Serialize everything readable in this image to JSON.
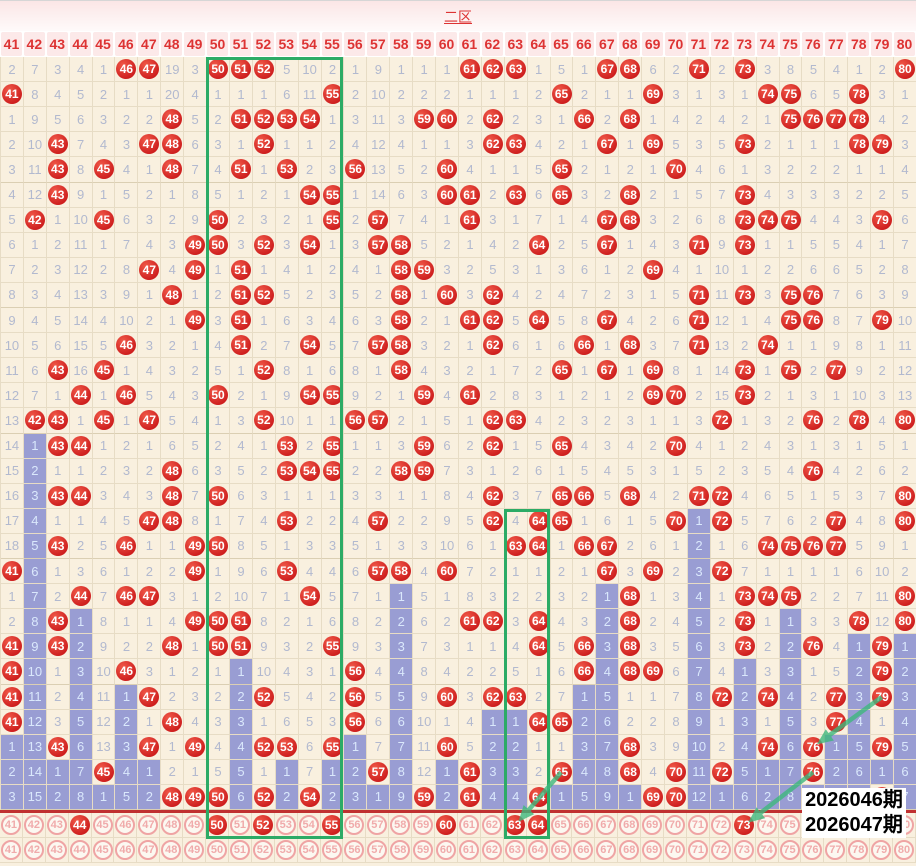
{
  "title": "二区",
  "labels": {
    "period_current": "2026046期",
    "period_next": "2026047期"
  },
  "chart_data": {
    "type": "table",
    "description": "Lottery zone-2 (numbers 41-80) trend chart: 30 past draws; * = drawn number shown as red ball, # = current-omission miss count on purple highlight, plain = miss count",
    "columns": "41,42,43,44,45,46,47,48,49,50,51,52,53,54,55,56,57,58,59,60,61,62,63,64,65,66,67,68,69,70,71,72,73,74,75,76,77,78,79,80",
    "rows": [
      "2,7,3,4,1,*46,*47,19,3,*50,*51,*52,5,10,2,1,9,1,1,1,*61,*62,*63,1,5,1,*67,*68,6,2,*71,2,*73,3,8,5,4,1,2,*80",
      "*41,8,4,5,2,1,1,20,4,1,1,1,6,11,*55,2,10,2,2,2,1,1,1,2,*65,2,1,1,*69,3,1,3,1,*74,*75,6,5,*78,3,1",
      "1,9,5,6,3,2,2,*48,5,2,*51,*52,*53,*54,1,3,11,3,*59,*60,2,*62,2,3,1,*66,2,*68,1,4,2,4,2,1,*75,*76,*77,*78,4,2",
      "2,10,*43,7,4,3,*47,*48,6,3,1,*52,1,1,2,4,12,4,1,1,3,*62,*63,4,2,1,*67,1,*69,5,3,5,*73,2,1,1,1,*78,*79,3",
      "3,11,*43,8,*45,4,1,*48,7,4,*51,1,*53,2,3,*56,13,5,2,*60,4,1,1,5,*65,2,1,2,1,*70,4,6,1,3,2,2,2,1,1,4",
      "4,12,*43,9,1,5,2,1,8,5,1,2,1,*54,*55,1,14,6,3,*60,*61,2,*63,6,*65,3,2,*68,2,1,5,7,*73,4,3,3,3,2,2,5",
      "5,*42,1,10,*45,6,3,2,9,*50,2,3,2,1,*55,2,*57,7,4,1,*61,3,1,7,1,4,*67,*68,3,2,6,8,*73,*74,*75,4,4,3,*79,6",
      "6,1,2,11,1,7,4,3,*49,*50,3,*52,3,*54,1,3,*57,*58,5,2,1,4,2,*64,2,5,*67,1,4,3,*71,9,*73,1,1,5,5,4,1,7",
      "7,2,3,12,2,8,*47,4,*49,1,*51,1,4,1,2,4,1,*58,*59,3,2,5,3,1,3,6,1,2,*69,4,1,10,1,2,2,6,6,5,2,8",
      "8,3,4,13,3,9,1,*48,1,2,*51,*52,5,2,3,5,2,*58,1,*60,3,*62,4,2,4,7,2,3,1,5,*71,11,*73,3,*75,*76,7,6,3,9",
      "9,4,5,14,4,10,2,1,*49,3,*51,1,6,3,4,6,3,*58,2,1,*61,*62,5,*64,5,8,*67,4,2,6,*71,12,1,4,*75,*76,8,7,*79,10",
      "10,5,6,15,5,*46,3,2,1,4,*51,2,7,*54,5,7,*57,*58,3,2,1,*62,6,1,6,*66,1,*68,3,7,*71,13,2,*74,1,1,9,8,1,11",
      "11,6,*43,16,*45,1,4,3,2,5,1,*52,8,1,6,8,1,*58,4,3,2,1,7,2,*65,1,*67,1,*69,8,1,14,*73,1,*75,2,*77,9,2,12",
      "12,7,1,*44,1,*46,5,4,3,*50,2,1,9,*54,*55,9,2,1,*59,4,*61,2,8,3,1,2,1,2,*69,*70,2,15,*73,2,1,3,1,10,3,13",
      "13,*42,*43,1,*45,1,*47,5,4,1,3,*52,10,1,1,*56,*57,2,1,5,1,*62,*63,4,2,3,2,3,1,1,3,*72,1,3,2,*76,2,*78,4,*80",
      "14,#1,*43,*44,1,2,1,6,5,2,4,1,*53,2,*55,1,1,3,*59,6,2,*62,1,5,*65,4,3,4,2,*70,4,1,2,4,3,1,3,1,5,1",
      "15,#2,1,1,2,3,2,*48,6,3,5,2,*53,*54,*55,2,2,*58,*59,7,3,1,2,6,1,5,4,5,3,1,5,2,3,5,4,*76,4,2,6,2",
      "16,#3,*43,*44,3,4,3,*48,7,*50,6,3,1,1,1,3,3,1,1,8,4,*62,3,7,*65,*66,5,*68,4,2,*71,*72,4,6,5,1,5,3,7,*80",
      "17,#4,1,1,4,5,*47,*48,8,1,7,4,*53,2,2,4,*57,2,2,9,5,*62,4,*64,*65,1,6,1,5,*70,#1,*72,5,7,6,2,*77,4,8,*80",
      "18,#5,*43,2,5,*46,1,1,*49,*50,8,5,1,3,3,5,1,3,3,10,6,1,*63,*64,1,*66,*67,2,6,1,#2,1,6,*74,*75,*76,*77,5,9,1",
      "*41,#6,1,3,6,1,2,2,*49,1,9,6,*53,4,4,6,*57,*58,4,*60,7,2,1,1,2,1,*67,3,*69,2,#3,*72,7,1,1,1,1,6,10,2",
      "1,#7,2,*44,7,*46,*47,3,1,2,10,7,1,*54,5,7,1,#1,5,1,8,3,2,2,3,2,#1,*68,1,3,#4,1,*73,*74,*75,2,2,7,11,*80",
      "2,#8,*43,#1,8,1,1,4,*49,*50,*51,8,2,1,6,8,2,#2,6,2,*61,*62,3,*64,4,3,#2,*68,2,4,#5,2,*73,1,#1,3,3,*78,12,*80",
      "*41,#9,*43,#2,9,2,2,*48,1,*50,*51,9,3,2,*55,9,3,#3,7,3,1,1,4,*64,5,*66,#3,*68,3,5,#6,3,*73,2,#2,*76,4,#1,*79,#1",
      "*41,#10,1,#3,10,*46,3,1,2,1,#1,10,4,3,1,*56,4,#4,8,4,2,2,5,1,6,*66,#4,*68,*69,6,#7,4,#1,3,#3,1,5,#2,*79,#2",
      "*41,#11,2,#4,11,#1,*47,2,3,2,#2,*52,5,4,2,*56,5,#5,9,*60,3,*62,*63,2,7,#1,#5,1,1,7,#8,*72,#2,*74,#4,2,*77,#3,*79,#3",
      "*41,#12,3,#5,12,#2,1,*48,4,3,#3,1,6,5,3,*56,6,#6,10,1,4,#1,#1,*64,*65,#2,#6,2,2,8,#9,1,#3,1,#5,3,*77,#4,1,#4",
      "#1,#13,*43,#6,13,#3,*47,1,*49,4,#4,*52,*53,6,*55,#1,7,#7,11,*60,5,#2,#2,1,1,#3,#7,*68,3,9,#10,2,#4,*74,#6,*76,#1,#5,*79,#5",
      "#2,#14,#1,#7,*45,#4,#1,2,1,5,#5,1,#1,7,#1,#2,*57,#8,12,#1,*61,#3,#3,2,*65,#4,#8,*68,4,*70,#11,*72,#5,#1,#7,*76,#2,#6,#1,#6",
      "#3,#15,#2,#8,#1,#5,#2,*48,*49,*50,#6,*52,#2,*54,#2,#3,#1,#9,*59,#2,*61,#4,#4,*64,#1,#5,#9,#1,*69,*70,#12,#1,#6,#2,#8,#1,#3,#7,*79,#7"
    ],
    "bottom_rows": [
      "41,42,43,*44,45,46,47,48,49,*50,51,*52,53,54,*55,56,57,58,59,*60,61,62,*63,*64,65,66,67,68,69,70,71,72,*73,74,75,76,77,78,79,80",
      "41,42,43,44,45,46,47,48,49,50,51,52,53,54,55,56,57,58,59,60,61,62,63,64,65,66,67,68,69,70,71,72,73,74,75,76,77,78,79,80"
    ]
  },
  "annotations": {
    "green_boxes": [
      {
        "col_start": 50,
        "col_end": 55,
        "row_start": 1,
        "row_end": "bottom"
      },
      {
        "col_start": 63,
        "col_end": 64,
        "row_start": 19,
        "row_end": "bottom"
      }
    ],
    "arrows": [
      {
        "from_col": 79,
        "from_row": 26,
        "to_col": 76,
        "to_row": 28
      },
      {
        "from_col": 76,
        "from_row": 29,
        "to_col": 73,
        "to_row": "bottom"
      },
      {
        "from_col": 65,
        "from_row": 29,
        "to_col": 63,
        "to_row": "bottom"
      }
    ],
    "labels": [
      {
        "text": "2026046期"
      },
      {
        "text": "2026047期"
      }
    ]
  },
  "colors": {
    "ball_red": "#d42a2a",
    "miss_text": "#b2b9cf",
    "purple_bg": "#999dd3",
    "purple_text": "#dae8fc",
    "header_text": "#dd3333",
    "header_bg": "#fce9e9",
    "green": "#2cab66",
    "separator_red": "#c03030",
    "grid_bg": "#f9f0df"
  }
}
